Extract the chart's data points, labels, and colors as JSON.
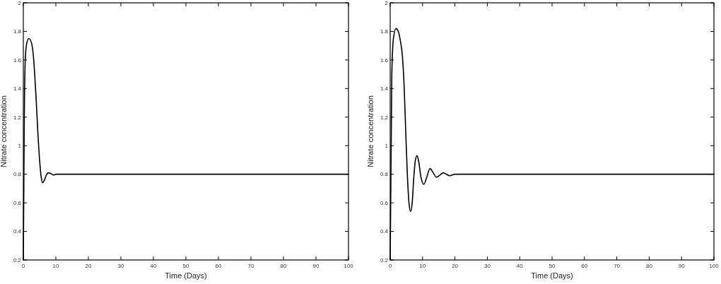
{
  "chart_data": [
    {
      "type": "line",
      "xlabel": "Time (Days)",
      "ylabel": "Nitrate concentration",
      "color": "#000000",
      "xlim": [
        0,
        100
      ],
      "ylim": [
        0.2,
        2
      ],
      "xticks": [
        0,
        10,
        20,
        30,
        40,
        50,
        60,
        70,
        80,
        90,
        100
      ],
      "yticks": [
        0.2,
        0.4,
        0.6,
        0.8,
        1,
        1.2,
        1.4,
        1.6,
        1.8,
        2
      ],
      "x": [
        0,
        0.3,
        0.6,
        1,
        1.7,
        2.5,
        3,
        3.5,
        4,
        4.5,
        5,
        5.5,
        5.9,
        6.5,
        7,
        7.7,
        8.5,
        9.3,
        10,
        100
      ],
      "values": [
        0.2,
        1.2,
        1.6,
        1.71,
        1.75,
        1.72,
        1.65,
        1.5,
        1.3,
        1.08,
        0.9,
        0.78,
        0.74,
        0.76,
        0.79,
        0.81,
        0.805,
        0.795,
        0.8,
        0.8
      ]
    },
    {
      "type": "line",
      "xlabel": "Time (Days)",
      "ylabel": "Nitrate concentration",
      "color": "#000000",
      "xlim": [
        0,
        100
      ],
      "ylim": [
        0.2,
        2
      ],
      "xticks": [
        0,
        10,
        20,
        30,
        40,
        50,
        60,
        70,
        80,
        90,
        100
      ],
      "yticks": [
        0.2,
        0.4,
        0.6,
        0.8,
        1,
        1.2,
        1.4,
        1.6,
        1.8,
        2
      ],
      "x": [
        0,
        0.5,
        1,
        1.8,
        2.5,
        3.1,
        3.8,
        4.3,
        4.8,
        5.3,
        5.8,
        6.3,
        6.8,
        7.3,
        7.8,
        8.3,
        8.8,
        9.5,
        10.4,
        11.3,
        12.3,
        13.3,
        14.3,
        15.4,
        16.4,
        17.4,
        18.3,
        20,
        100
      ],
      "values": [
        0.2,
        1.5,
        1.75,
        1.82,
        1.8,
        1.74,
        1.62,
        1.42,
        1.1,
        0.8,
        0.6,
        0.54,
        0.6,
        0.78,
        0.9,
        0.93,
        0.89,
        0.78,
        0.73,
        0.78,
        0.84,
        0.81,
        0.78,
        0.795,
        0.81,
        0.8,
        0.79,
        0.8,
        0.8
      ]
    }
  ]
}
